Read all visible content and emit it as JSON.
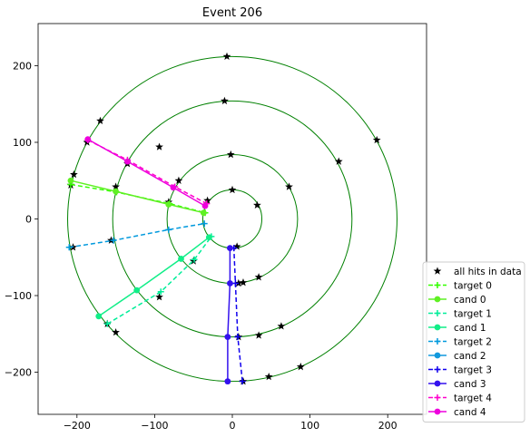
{
  "chart_data": {
    "type": "scatter",
    "title": "Event 206",
    "xlabel": "",
    "ylabel": "",
    "xlim": [
      -250,
      250
    ],
    "ylim": [
      -255,
      255
    ],
    "xticks": [
      -200,
      -100,
      0,
      100,
      200
    ],
    "yticks": [
      -200,
      -100,
      0,
      100,
      200
    ],
    "grid": false,
    "legend_position": "bottom-right",
    "circles": {
      "radii": [
        38,
        84,
        154,
        212
      ],
      "color": "#008000"
    },
    "series": [
      {
        "name": "all hits in data",
        "kind": "points",
        "marker": "star",
        "color": "#000000",
        "points": [
          [
            -7,
            212
          ],
          [
            -10,
            154
          ],
          [
            -2,
            84
          ],
          [
            0,
            38
          ],
          [
            32,
            18
          ],
          [
            73,
            42
          ],
          [
            137,
            75
          ],
          [
            186,
            103
          ],
          [
            -170,
            128
          ],
          [
            -94,
            94
          ],
          [
            -187,
            100
          ],
          [
            -135,
            72
          ],
          [
            -69,
            50
          ],
          [
            -32,
            24
          ],
          [
            -204,
            58
          ],
          [
            -150,
            42
          ],
          [
            -82,
            22
          ],
          [
            -208,
            44
          ],
          [
            -205,
            -37
          ],
          [
            -156,
            -28
          ],
          [
            -50,
            -55
          ],
          [
            -94,
            -102
          ],
          [
            -150,
            -148
          ],
          [
            -161,
            -137
          ],
          [
            6,
            -36
          ],
          [
            8,
            -84
          ],
          [
            8,
            -154
          ],
          [
            14,
            -83
          ],
          [
            34,
            -76
          ],
          [
            34,
            -152
          ],
          [
            63,
            -140
          ],
          [
            88,
            -193
          ],
          [
            47,
            -206
          ],
          [
            14,
            -212
          ]
        ]
      },
      {
        "name": "target 0",
        "kind": "dashed",
        "marker": "plus",
        "color": "#33ff00",
        "points": [
          [
            -208,
            45
          ],
          [
            -149,
            35
          ],
          [
            -81,
            20
          ],
          [
            -35,
            8
          ]
        ]
      },
      {
        "name": "cand 0",
        "kind": "solid",
        "marker": "circle",
        "color": "#5ff023",
        "points": [
          [
            -208,
            50
          ],
          [
            -150,
            36
          ],
          [
            -82,
            19
          ],
          [
            -37,
            8
          ]
        ]
      },
      {
        "name": "target 1",
        "kind": "dashed",
        "marker": "plus",
        "color": "#00ee99",
        "points": [
          [
            -161,
            -137
          ],
          [
            -92,
            -95
          ],
          [
            -49,
            -53
          ],
          [
            -27,
            -23
          ]
        ]
      },
      {
        "name": "cand 1",
        "kind": "solid",
        "marker": "circle",
        "color": "#11ee88",
        "points": [
          [
            -172,
            -127
          ],
          [
            -123,
            -93
          ],
          [
            -66,
            -52
          ],
          [
            -30,
            -24
          ]
        ]
      },
      {
        "name": "target 2",
        "kind": "dashed",
        "marker": "plus",
        "color": "#0099dd",
        "points": [
          [
            -210,
            -37
          ],
          [
            -153,
            -28
          ],
          [
            -82,
            -14
          ],
          [
            -36,
            -6
          ]
        ]
      },
      {
        "name": "cand 2",
        "kind": "solid",
        "marker": "circle",
        "color": "#1199dd",
        "points": []
      },
      {
        "name": "target 3",
        "kind": "dashed",
        "marker": "plus",
        "color": "#1100ee",
        "points": [
          [
            13,
            -212
          ],
          [
            7,
            -154
          ],
          [
            4,
            -84
          ],
          [
            2,
            -38
          ]
        ]
      },
      {
        "name": "cand 3",
        "kind": "solid",
        "marker": "circle",
        "color": "#3311ee",
        "points": [
          [
            -6,
            -212
          ],
          [
            -6,
            -154
          ],
          [
            -3,
            -84
          ],
          [
            -3,
            -38
          ]
        ]
      },
      {
        "name": "target 4",
        "kind": "dashed",
        "marker": "plus",
        "color": "#ff00cc",
        "points": [
          [
            -186,
            103
          ],
          [
            -135,
            77
          ],
          [
            -74,
            42
          ],
          [
            -33,
            20
          ]
        ]
      },
      {
        "name": "cand 4",
        "kind": "solid",
        "marker": "circle",
        "color": "#ee00dd",
        "points": [
          [
            -186,
            104
          ],
          [
            -135,
            75
          ],
          [
            -76,
            41
          ],
          [
            -35,
            17
          ]
        ]
      }
    ]
  }
}
